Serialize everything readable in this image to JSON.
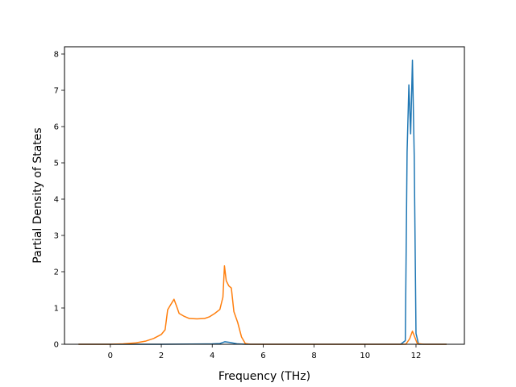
{
  "chart_data": {
    "type": "line",
    "title": "",
    "xlabel": "Frequency (THz)",
    "ylabel": "Partial Density of States",
    "xlim": [
      -1.8,
      13.9
    ],
    "ylim": [
      0,
      8.2
    ],
    "xticks": [
      0,
      2,
      4,
      6,
      8,
      10,
      12
    ],
    "yticks": [
      0,
      1,
      2,
      3,
      4,
      5,
      6,
      7,
      8
    ],
    "grid": false,
    "legend": "none",
    "series": [
      {
        "color": "#1f77b4",
        "points": [
          [
            -1.25,
            0
          ],
          [
            2.0,
            0
          ],
          [
            4.0,
            0.01
          ],
          [
            4.3,
            0.02
          ],
          [
            4.5,
            0.07
          ],
          [
            4.7,
            0.05
          ],
          [
            5.0,
            0.01
          ],
          [
            5.3,
            0
          ],
          [
            11.4,
            0
          ],
          [
            11.58,
            0.1
          ],
          [
            11.65,
            5.3
          ],
          [
            11.72,
            7.15
          ],
          [
            11.79,
            5.8
          ],
          [
            11.86,
            7.83
          ],
          [
            11.93,
            5.2
          ],
          [
            12.0,
            0.3
          ],
          [
            12.1,
            0
          ],
          [
            13.2,
            0
          ]
        ]
      },
      {
        "color": "#ff7f0e",
        "points": [
          [
            -1.25,
            0
          ],
          [
            0.0,
            0
          ],
          [
            0.5,
            0.01
          ],
          [
            1.0,
            0.04
          ],
          [
            1.4,
            0.09
          ],
          [
            1.7,
            0.16
          ],
          [
            2.0,
            0.27
          ],
          [
            2.15,
            0.4
          ],
          [
            2.25,
            0.95
          ],
          [
            2.35,
            1.07
          ],
          [
            2.5,
            1.24
          ],
          [
            2.6,
            1.05
          ],
          [
            2.7,
            0.85
          ],
          [
            2.9,
            0.77
          ],
          [
            3.1,
            0.71
          ],
          [
            3.4,
            0.7
          ],
          [
            3.7,
            0.71
          ],
          [
            3.9,
            0.76
          ],
          [
            4.1,
            0.85
          ],
          [
            4.3,
            0.96
          ],
          [
            4.42,
            1.3
          ],
          [
            4.48,
            2.16
          ],
          [
            4.55,
            1.75
          ],
          [
            4.65,
            1.61
          ],
          [
            4.75,
            1.55
          ],
          [
            4.85,
            0.9
          ],
          [
            5.0,
            0.6
          ],
          [
            5.15,
            0.2
          ],
          [
            5.3,
            0.02
          ],
          [
            5.5,
            0
          ],
          [
            11.6,
            0
          ],
          [
            11.75,
            0.15
          ],
          [
            11.86,
            0.36
          ],
          [
            11.95,
            0.2
          ],
          [
            12.05,
            0.02
          ],
          [
            12.3,
            0
          ],
          [
            13.2,
            0
          ]
        ]
      }
    ]
  }
}
